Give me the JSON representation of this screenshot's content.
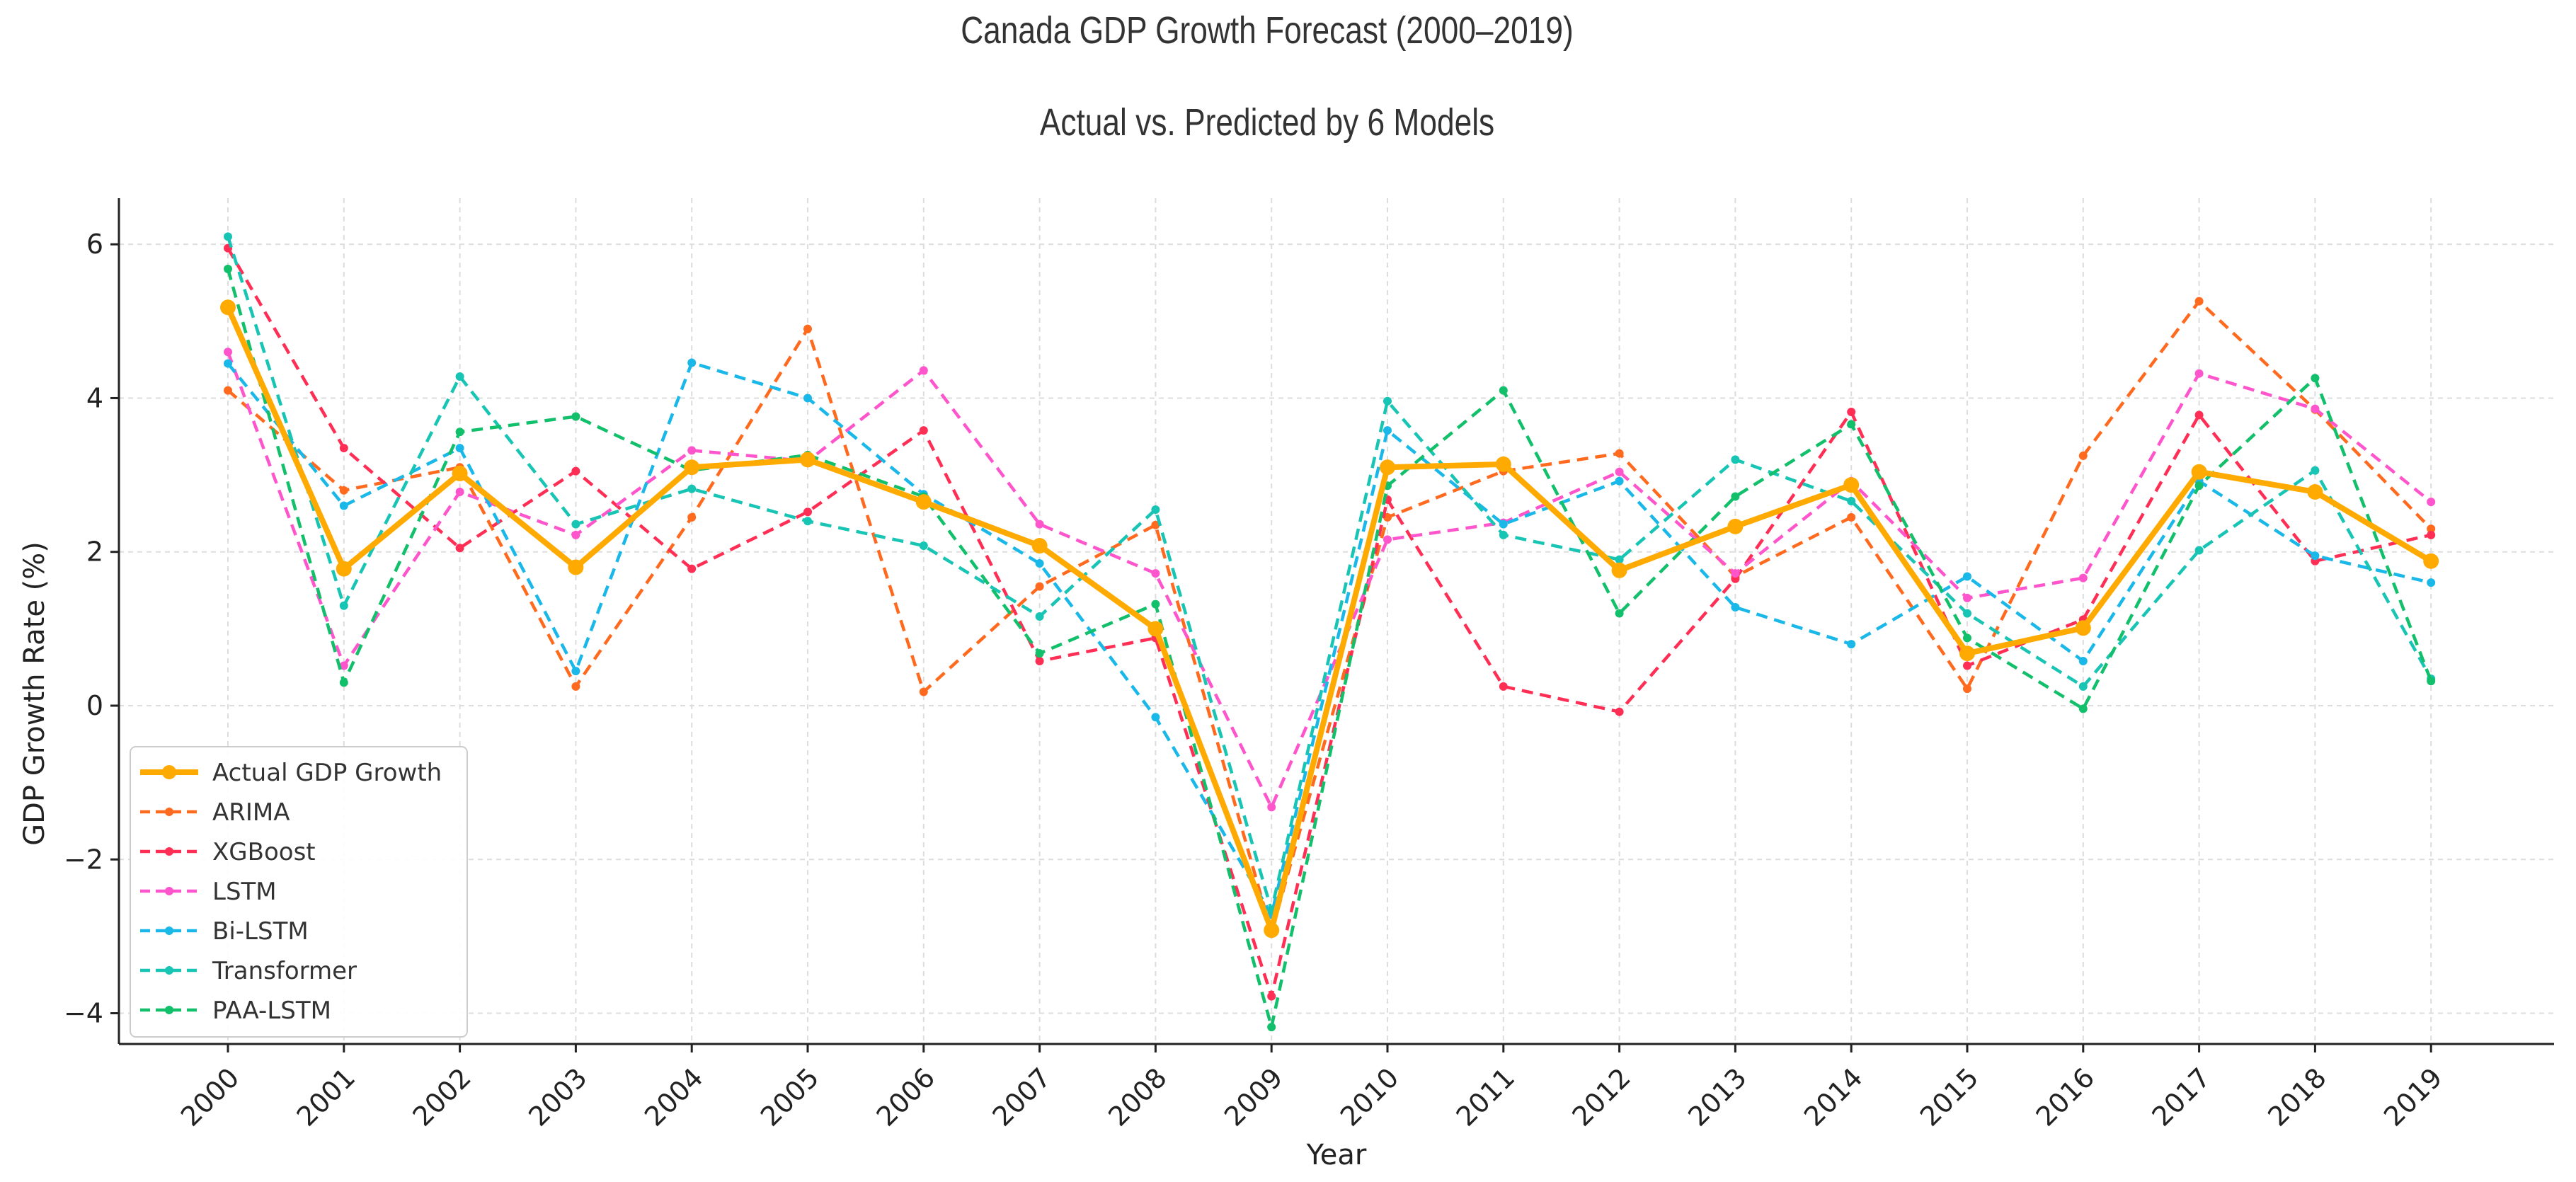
{
  "chart_data": {
    "type": "line",
    "title": "Canada GDP Growth Forecast (2000–2019)",
    "subtitle": "Actual vs. Predicted by 6 Models",
    "xlabel": "Year",
    "ylabel": "GDP Growth Rate (%)",
    "ylim": [
      -4.4,
      6.6
    ],
    "yticks": [
      -4,
      -2,
      0,
      2,
      4,
      6
    ],
    "ytick_labels": [
      "−4",
      "−2",
      "0",
      "2",
      "4",
      "6"
    ],
    "grid": true,
    "legend": "lower-left",
    "categories": [
      "2000",
      "2001",
      "2002",
      "2003",
      "2004",
      "2005",
      "2006",
      "2007",
      "2008",
      "2009",
      "2010",
      "2011",
      "2012",
      "2013",
      "2014",
      "2015",
      "2016",
      "2017",
      "2018",
      "2019"
    ],
    "series": [
      {
        "name": "Actual GDP Growth",
        "color": "#FFAA00",
        "style": "solid",
        "values": [
          5.18,
          1.78,
          3.02,
          1.8,
          3.1,
          3.2,
          2.65,
          2.08,
          1.0,
          -2.92,
          3.1,
          3.14,
          1.76,
          2.33,
          2.87,
          0.68,
          1.01,
          3.04,
          2.78,
          1.88
        ]
      },
      {
        "name": "ARIMA",
        "color": "#FF6A1F",
        "style": "dashed",
        "values": [
          4.1,
          2.8,
          3.1,
          0.25,
          2.45,
          4.9,
          0.18,
          1.55,
          2.35,
          -2.95,
          2.45,
          3.05,
          3.28,
          1.68,
          2.45,
          0.22,
          3.25,
          5.26,
          3.85,
          2.3
        ]
      },
      {
        "name": "XGBoost",
        "color": "#FF2E55",
        "style": "dashed",
        "values": [
          5.95,
          3.35,
          2.05,
          3.05,
          1.78,
          2.52,
          3.58,
          0.58,
          0.88,
          -3.78,
          2.68,
          0.25,
          -0.08,
          1.65,
          3.82,
          0.52,
          1.12,
          3.78,
          1.88,
          2.22
        ]
      },
      {
        "name": "LSTM",
        "color": "#FF55CC",
        "style": "dashed",
        "values": [
          4.6,
          0.52,
          2.78,
          2.22,
          3.32,
          3.18,
          4.36,
          2.36,
          1.72,
          -1.32,
          2.16,
          2.38,
          3.04,
          1.72,
          2.92,
          1.4,
          1.66,
          4.32,
          3.86,
          2.65
        ]
      },
      {
        "name": "Bi-LSTM",
        "color": "#1AB8E8",
        "style": "dashed",
        "values": [
          4.45,
          2.6,
          3.35,
          0.45,
          4.46,
          4.0,
          2.75,
          1.85,
          -0.15,
          -2.72,
          3.58,
          2.36,
          2.92,
          1.28,
          0.8,
          1.68,
          0.58,
          2.92,
          1.95,
          1.6
        ]
      },
      {
        "name": "Transformer",
        "color": "#18C4B4",
        "style": "dashed",
        "values": [
          6.1,
          1.3,
          4.28,
          2.36,
          2.82,
          2.4,
          2.08,
          1.16,
          2.55,
          -2.66,
          3.96,
          2.22,
          1.9,
          3.2,
          2.66,
          1.2,
          0.25,
          2.02,
          3.06,
          0.35
        ]
      },
      {
        "name": "PAA-LSTM",
        "color": "#12BF6A",
        "style": "dashed",
        "values": [
          5.68,
          0.3,
          3.56,
          3.76,
          3.06,
          3.26,
          2.72,
          0.68,
          1.32,
          -4.18,
          2.86,
          4.1,
          1.2,
          2.72,
          3.66,
          0.88,
          -0.04,
          2.86,
          4.26,
          0.32
        ]
      }
    ]
  }
}
